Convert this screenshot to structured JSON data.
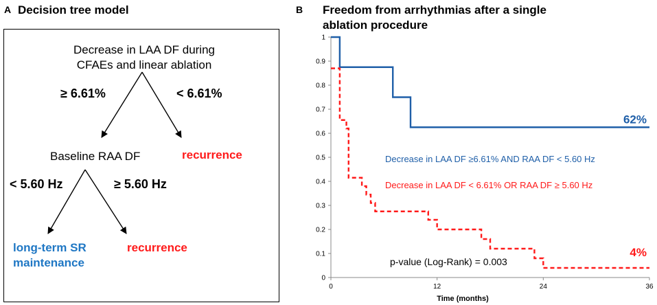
{
  "panel_a": {
    "letter": "A",
    "title": "Decision tree model",
    "root_line1": "Decrease in LAA DF during",
    "root_line2": "CFAEs and linear ablation",
    "root_left_threshold": "≥ 6.61%",
    "root_right_threshold": "< 6.61%",
    "mid_node": "Baseline RAA  DF",
    "right_leaf": "recurrence",
    "mid_left_threshold": "< 5.60 Hz",
    "mid_right_threshold": "≥ 5.60 Hz",
    "left_leaf_line1": "long-term SR",
    "left_leaf_line2": "maintenance",
    "bottom_right_leaf": "recurrence",
    "colors": {
      "blue": "#1f77c4",
      "red": "#ff1a1a"
    }
  },
  "panel_b": {
    "letter": "B",
    "title_line1": "Freedom from arrhythmias after a single",
    "title_line2": "ablation procedure"
  },
  "chart_data": {
    "type": "line",
    "title": "Freedom from arrhythmias after a single ablation procedure",
    "xlabel": "Time (months)",
    "ylabel": "",
    "xlim": [
      0,
      36
    ],
    "ylim": [
      0,
      1
    ],
    "xticks": [
      0,
      12,
      24,
      36
    ],
    "yticks": [
      0,
      0.1,
      0.2,
      0.3,
      0.4,
      0.5,
      0.6,
      0.7,
      0.8,
      0.9,
      1
    ],
    "grid": false,
    "series": [
      {
        "name": "Decrease in LAA DF ≥6.61% AND RAA DF  < 5.60 Hz",
        "color": "#1f5fa8",
        "dash": "solid",
        "end_label": "62%",
        "step_x": [
          0,
          1,
          7,
          9,
          36
        ],
        "step_y": [
          1.0,
          0.875,
          0.75,
          0.625,
          0.625
        ]
      },
      {
        "name": "Decrease in LAA DF < 6.61%  OR  RAA DF ≥ 5.60 Hz",
        "color": "#ff1a1a",
        "dash": "dashed",
        "end_label": "4%",
        "step_x": [
          0,
          1,
          1.75,
          2,
          3.5,
          4,
          4.5,
          5,
          5.5,
          11,
          12,
          17,
          18,
          23,
          24,
          36
        ],
        "step_y": [
          0.87,
          0.655,
          0.62,
          0.415,
          0.38,
          0.345,
          0.31,
          0.275,
          0.275,
          0.24,
          0.2,
          0.16,
          0.12,
          0.08,
          0.04,
          0.04
        ]
      }
    ],
    "annotation": "p-value (Log-Rank) = 0.003",
    "xlabel_display": "Time (months)"
  }
}
